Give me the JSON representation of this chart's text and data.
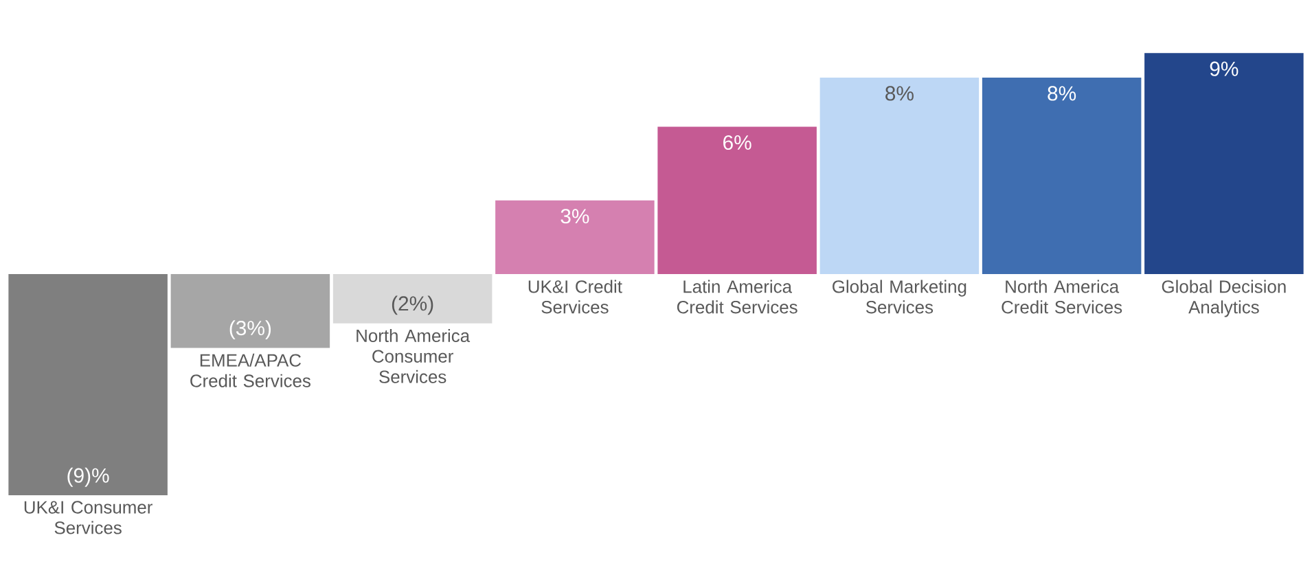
{
  "chart_data": {
    "type": "bar",
    "categories": [
      "UK&I Consumer Services",
      "EMEA/APAC Credit Services",
      "North America Consumer Services",
      "UK&I Credit Services",
      "Latin America Credit Services",
      "Global Marketing Services",
      "North America Credit Services",
      "Global Decision Analytics"
    ],
    "values": [
      -9,
      -3,
      -2,
      3,
      6,
      8,
      8,
      9
    ],
    "value_labels": [
      "(9)%",
      "(3%)",
      "(2%)",
      "3%",
      "6%",
      "8%",
      "8%",
      "9%"
    ],
    "colors": [
      "#7f7f7f",
      "#a6a6a6",
      "#d9d9d9",
      "#d580b0",
      "#c55a93",
      "#bdd7f5",
      "#3f6eb1",
      "#23468b"
    ]
  }
}
